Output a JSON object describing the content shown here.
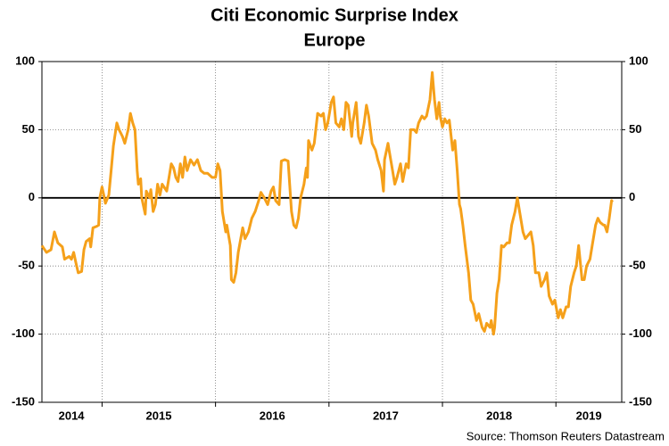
{
  "chart_data": {
    "type": "line",
    "title": "Citi Economic Surprise Index",
    "subtitle": "Europe",
    "source": "Source: Thomson Reuters Datastream",
    "color": "#f5a01a",
    "x": [
      2014.47,
      2014.51,
      2014.55,
      2014.58,
      2014.61,
      2014.65,
      2014.67,
      2014.71,
      2014.73,
      2014.75,
      2014.77,
      2014.79,
      2014.82,
      2014.84,
      2014.86,
      2014.89,
      2014.9,
      2014.92,
      2014.95,
      2014.97,
      2014.98,
      2015.0,
      2015.02,
      2015.03,
      2015.06,
      2015.08,
      2015.1,
      2015.13,
      2015.15,
      2015.18,
      2015.2,
      2015.23,
      2015.25,
      2015.27,
      2015.29,
      2015.31,
      2015.32,
      2015.34,
      2015.35,
      2015.38,
      2015.39,
      2015.42,
      2015.43,
      2015.45,
      2015.47,
      2015.49,
      2015.51,
      2015.53,
      2015.57,
      2015.59,
      2015.61,
      2015.63,
      2015.65,
      2015.67,
      2015.69,
      2015.71,
      2015.73,
      2015.75,
      2015.78,
      2015.81,
      2015.84,
      2015.87,
      2015.9,
      2015.93,
      2015.97,
      2016.0,
      2016.02,
      2016.04,
      2016.06,
      2016.09,
      2016.1,
      2016.13,
      2016.14,
      2016.16,
      2016.18,
      2016.2,
      2016.24,
      2016.26,
      2016.29,
      2016.32,
      2016.35,
      2016.38,
      2016.4,
      2016.43,
      2016.46,
      2016.49,
      2016.51,
      2016.53,
      2016.56,
      2016.58,
      2016.61,
      2016.64,
      2016.67,
      2016.69,
      2016.71,
      2016.73,
      2016.75,
      2016.78,
      2016.8,
      2016.81,
      2016.82,
      2016.85,
      2016.87,
      2016.9,
      2016.93,
      2016.95,
      2016.97,
      2016.99,
      2017.02,
      2017.04,
      2017.06,
      2017.09,
      2017.11,
      2017.13,
      2017.15,
      2017.17,
      2017.2,
      2017.21,
      2017.24,
      2017.26,
      2017.28,
      2017.31,
      2017.33,
      2017.35,
      2017.38,
      2017.41,
      2017.43,
      2017.46,
      2017.48,
      2017.49,
      2017.52,
      2017.53,
      2017.56,
      2017.58,
      2017.6,
      2017.63,
      2017.65,
      2017.68,
      2017.7,
      2017.72,
      2017.75,
      2017.77,
      2017.79,
      2017.82,
      2017.84,
      2017.86,
      2017.89,
      2017.91,
      2017.93,
      2017.95,
      2017.97,
      2017.98,
      2018.0,
      2018.02,
      2018.04,
      2018.06,
      2018.09,
      2018.11,
      2018.13,
      2018.15,
      2018.16,
      2018.18,
      2018.2,
      2018.23,
      2018.25,
      2018.27,
      2018.3,
      2018.32,
      2018.35,
      2018.37,
      2018.39,
      2018.42,
      2018.43,
      2018.45,
      2018.46,
      2018.48,
      2018.5,
      2018.52,
      2018.54,
      2018.57,
      2018.59,
      2018.61,
      2018.64,
      2018.66,
      2018.68,
      2018.71,
      2018.73,
      2018.75,
      2018.78,
      2018.8,
      2018.82,
      2018.85,
      2018.87,
      2018.9,
      2018.92,
      2018.94,
      2018.97,
      2018.99,
      2019.02,
      2019.04,
      2019.06,
      2019.09,
      2019.11,
      2019.13,
      2019.16,
      2019.18,
      2019.2,
      2019.23,
      2019.25,
      2019.27,
      2019.3,
      2019.32,
      2019.35,
      2019.37,
      2019.39,
      2019.42,
      2019.43,
      2019.45,
      2019.47,
      2019.49,
      2019.5
    ],
    "values": [
      -35,
      -40,
      -38,
      -25,
      -33,
      -36,
      -45,
      -43,
      -45,
      -40,
      -48,
      -55,
      -54,
      -38,
      -32,
      -30,
      -36,
      -22,
      -21,
      -20,
      0,
      8,
      0,
      -4,
      2,
      20,
      38,
      55,
      50,
      45,
      40,
      50,
      62,
      55,
      50,
      20,
      10,
      14,
      0,
      -12,
      5,
      0,
      6,
      -10,
      -5,
      10,
      2,
      10,
      5,
      15,
      25,
      22,
      15,
      12,
      25,
      15,
      30,
      20,
      28,
      24,
      28,
      20,
      18,
      18,
      15,
      15,
      25,
      20,
      -10,
      -25,
      -20,
      -35,
      -60,
      -62,
      -55,
      -40,
      -22,
      -30,
      -25,
      -15,
      -10,
      -2,
      4,
      0,
      -5,
      5,
      8,
      -2,
      -5,
      27,
      28,
      27,
      -10,
      -20,
      -22,
      -15,
      0,
      10,
      22,
      15,
      42,
      35,
      40,
      62,
      60,
      62,
      50,
      55,
      70,
      74,
      55,
      52,
      58,
      50,
      70,
      68,
      45,
      55,
      70,
      45,
      40,
      55,
      68,
      60,
      40,
      35,
      28,
      20,
      5,
      28,
      40,
      35,
      20,
      10,
      15,
      25,
      12,
      25,
      22,
      50,
      50,
      48,
      55,
      60,
      58,
      60,
      72,
      92,
      72,
      58,
      70,
      60,
      52,
      58,
      55,
      57,
      35,
      42,
      20,
      -5,
      -8,
      -20,
      -35,
      -55,
      -75,
      -78,
      -90,
      -85,
      -95,
      -98,
      -92,
      -95,
      -90,
      -100,
      -95,
      -70,
      -60,
      -35,
      -36,
      -33,
      -33,
      -20,
      -10,
      0,
      -10,
      -25,
      -30,
      -28,
      -25,
      -35,
      -55,
      -55,
      -65,
      -60,
      -55,
      -72,
      -78,
      -75,
      -88,
      -82,
      -88,
      -80,
      -80,
      -65,
      -55,
      -50,
      -35,
      -60,
      -60,
      -50,
      -45,
      -35,
      -20,
      -15,
      -18,
      -20,
      -20,
      -25,
      -15,
      -2,
      -3
    ],
    "xlim": [
      2014.47,
      2019.58
    ],
    "xticks": [
      {
        "value": 2014.73,
        "label": "2014"
      },
      {
        "value": 2015.5,
        "label": "2015"
      },
      {
        "value": 2016.5,
        "label": "2016"
      },
      {
        "value": 2017.5,
        "label": "2017"
      },
      {
        "value": 2018.5,
        "label": "2018"
      },
      {
        "value": 2019.29,
        "label": "2019"
      }
    ],
    "xgrid": [
      2015,
      2016,
      2017,
      2018,
      2019
    ],
    "ylim": [
      -150,
      100
    ],
    "yticks": [
      -150,
      -100,
      -50,
      0,
      50,
      100
    ],
    "y2lim": [
      -150,
      100
    ],
    "y2ticks": [
      -150,
      -100,
      -50,
      0,
      50,
      100
    ],
    "grid": true
  }
}
